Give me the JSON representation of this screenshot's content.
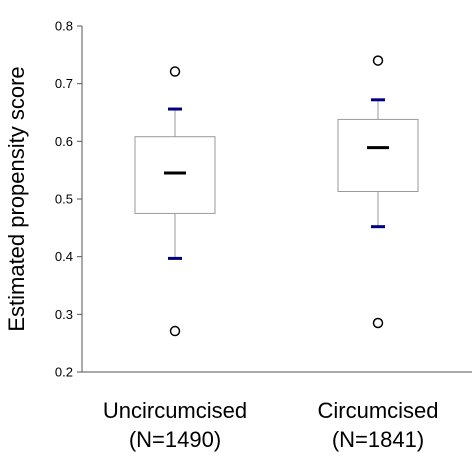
{
  "chart_data": {
    "type": "boxplot",
    "ylabel": "Estimated propensity score",
    "ylim": [
      0.2,
      0.8
    ],
    "yticks": [
      "0.2",
      "0.3",
      "0.4",
      "0.5",
      "0.6",
      "0.7",
      "0.8"
    ],
    "grid": false,
    "categories": [
      {
        "name": "Uncircumcised",
        "n_label": "(N=1490)"
      },
      {
        "name": "Circumcised",
        "n_label": "(N=1841)"
      }
    ],
    "boxes": [
      {
        "q1": 0.475,
        "median": 0.545,
        "q3": 0.608,
        "whisker_low": 0.397,
        "whisker_high": 0.656,
        "outlier_low": 0.271,
        "outlier_high": 0.721
      },
      {
        "q1": 0.513,
        "median": 0.589,
        "q3": 0.638,
        "whisker_low": 0.452,
        "whisker_high": 0.672,
        "outlier_low": 0.285,
        "outlier_high": 0.74
      }
    ],
    "colors": {
      "whisker_cap": "#000080",
      "box_edge": "#9a9a9a",
      "median": "#000000"
    }
  }
}
